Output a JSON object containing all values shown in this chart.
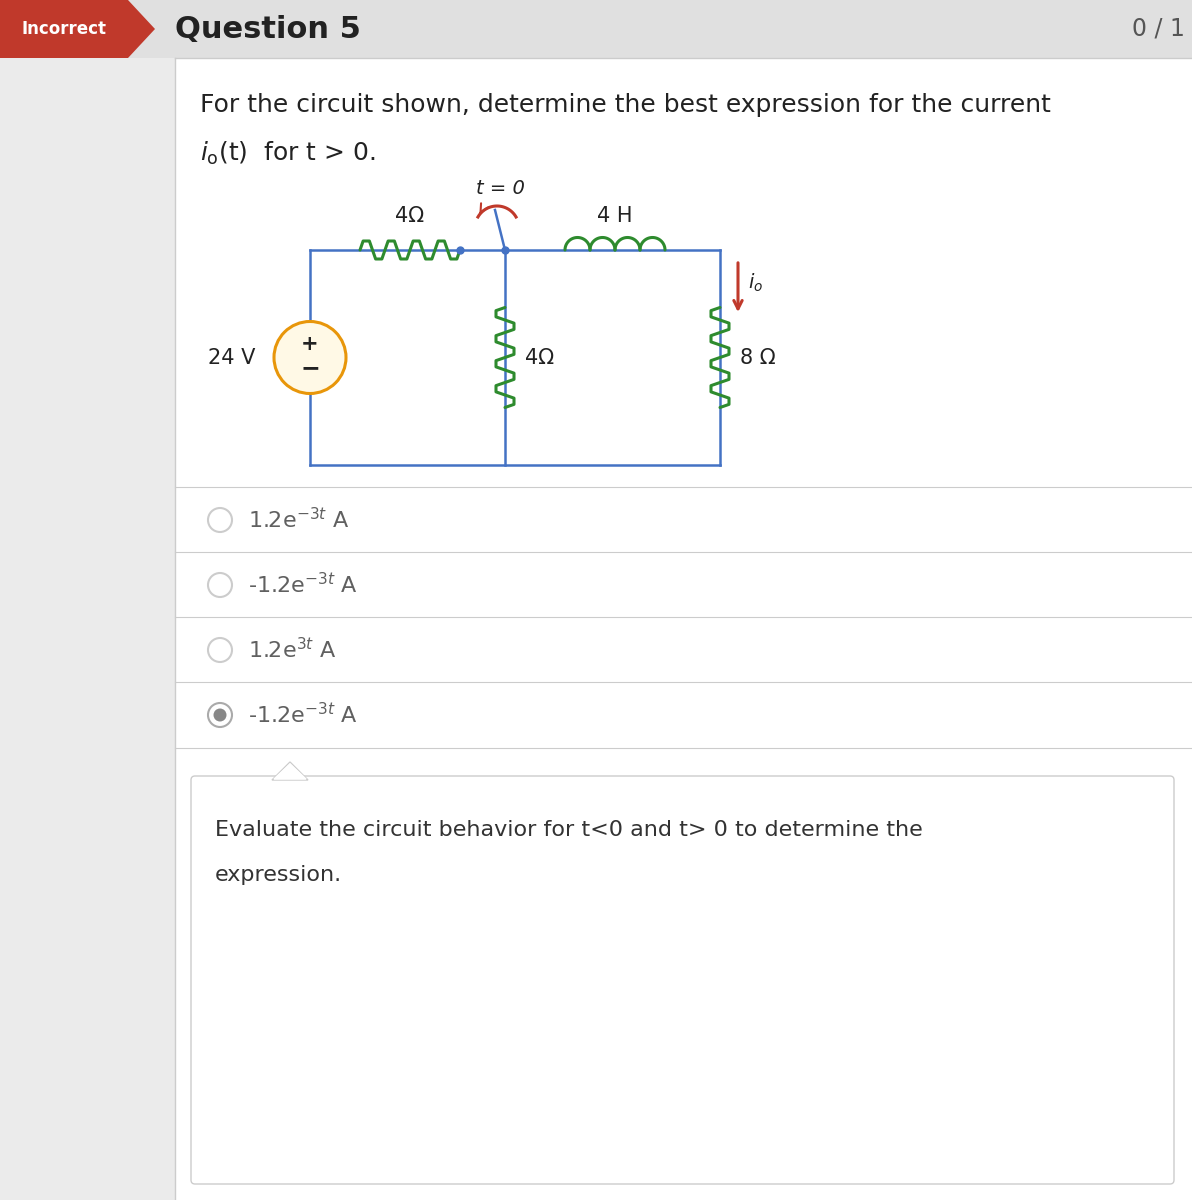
{
  "title_badge": "Incorrect",
  "title_badge_color": "#c0392b",
  "title_badge_text_color": "#ffffff",
  "question_title": "Question 5",
  "score": "0 / 1",
  "question_text_line1": "For the circuit shown, determine the best expression for the current",
  "question_text_line2_part1": "i",
  "question_text_line2_part2": "o",
  "question_text_line2_part3": "(t)  for t > 0.",
  "circuit_label_4ohm_top": "4Ω",
  "circuit_label_switch": "t = 0",
  "circuit_label_4H": "4 H",
  "circuit_label_24V": "24 V",
  "circuit_label_4ohm_mid": "4Ω",
  "circuit_label_8ohm": "8 Ω",
  "options_latex": [
    "1.2e$^{-3t}$ A",
    "-1.2e$^{-3t}$ A",
    "1.2e$^{3t}$ A",
    "-1.2e$^{-3t}$ A"
  ],
  "options_selected": [
    false,
    false,
    false,
    true
  ],
  "feedback_line1": "Evaluate the circuit behavior for t<0 and t> 0 to determine the",
  "feedback_line2": "expression.",
  "bg_color": "#ebebeb",
  "content_bg": "#ffffff",
  "header_bg": "#e0e0e0",
  "divider_color": "#cccccc",
  "wire_color": "#4472c4",
  "resistor_color": "#2e8b2e",
  "inductor_color": "#2e8b2e",
  "switch_line_color": "#4472c4",
  "switch_arrow_color": "#c0392b",
  "io_arrow_color": "#c0392b",
  "source_edge_color": "#e8960a",
  "option_text_color": "#606060",
  "selected_dot_color": "#888888"
}
